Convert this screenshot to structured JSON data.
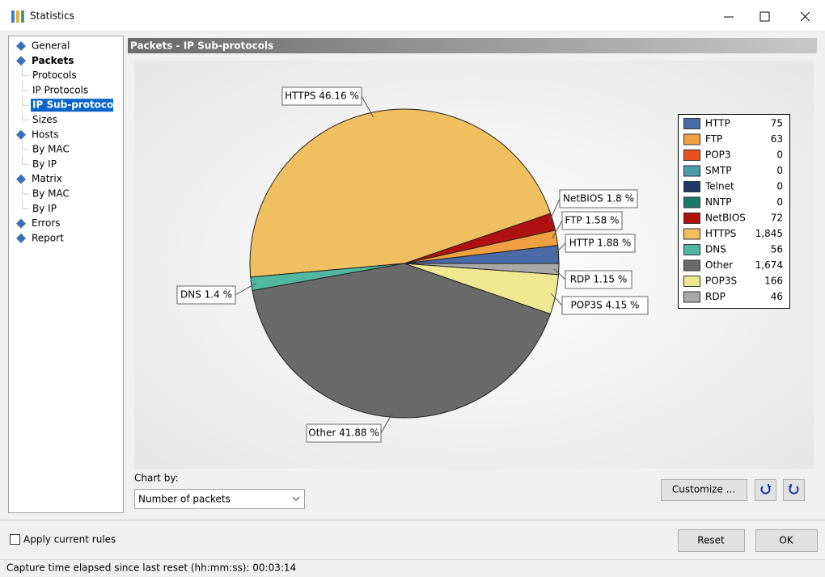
{
  "window": {
    "title": "Statistics"
  },
  "tree": [
    {
      "label": "General"
    },
    {
      "label": "Packets",
      "children": [
        "Protocols",
        "IP Protocols",
        "IP Sub-protocols",
        "Sizes"
      ]
    },
    {
      "label": "Hosts",
      "children": [
        "By MAC",
        "By IP"
      ]
    },
    {
      "label": "Matrix",
      "children": [
        "By MAC",
        "By IP"
      ]
    },
    {
      "label": "Errors"
    },
    {
      "label": "Report"
    }
  ],
  "panel": {
    "title": "Packets - IP Sub-protocols"
  },
  "chart_data": {
    "type": "pie",
    "categories": [
      "HTTP",
      "FTP",
      "POP3",
      "SMTP",
      "Telnet",
      "NNTP",
      "NetBIOS",
      "HTTPS",
      "DNS",
      "Other",
      "POP3S",
      "RDP"
    ],
    "values": [
      75,
      63,
      0,
      0,
      0,
      0,
      72,
      1845,
      56,
      1674,
      166,
      46
    ],
    "value_labels": [
      "75",
      "63",
      "0",
      "0",
      "0",
      "0",
      "72",
      "1,845",
      "56",
      "1,674",
      "166",
      "46"
    ],
    "slice_labels": [
      "HTTP 1.88 %",
      "FTP 1.58 %",
      null,
      null,
      null,
      null,
      "NetBIOS 1.8 %",
      "HTTPS 46.16 %",
      "DNS 1.4 %",
      "Other 41.88 %",
      "POP3S 4.15 %",
      "RDP 1.15 %"
    ],
    "colors": [
      "#4a6aa8",
      "#f0a040",
      "#e85020",
      "#4a9aaa",
      "#203a6a",
      "#1a7a6a",
      "#b01010",
      "#f0c060",
      "#50b8a0",
      "#6a6a6a",
      "#f0e890",
      "#a8a8a8"
    ]
  },
  "controls": {
    "chart_by_label": "Chart by:",
    "chart_by_value": "Number of packets",
    "customize": "Customize ...",
    "apply_rules": "Apply current rules",
    "reset": "Reset",
    "ok": "OK"
  },
  "status": "Capture time elapsed since last reset (hh:mm:ss): 00:03:14"
}
